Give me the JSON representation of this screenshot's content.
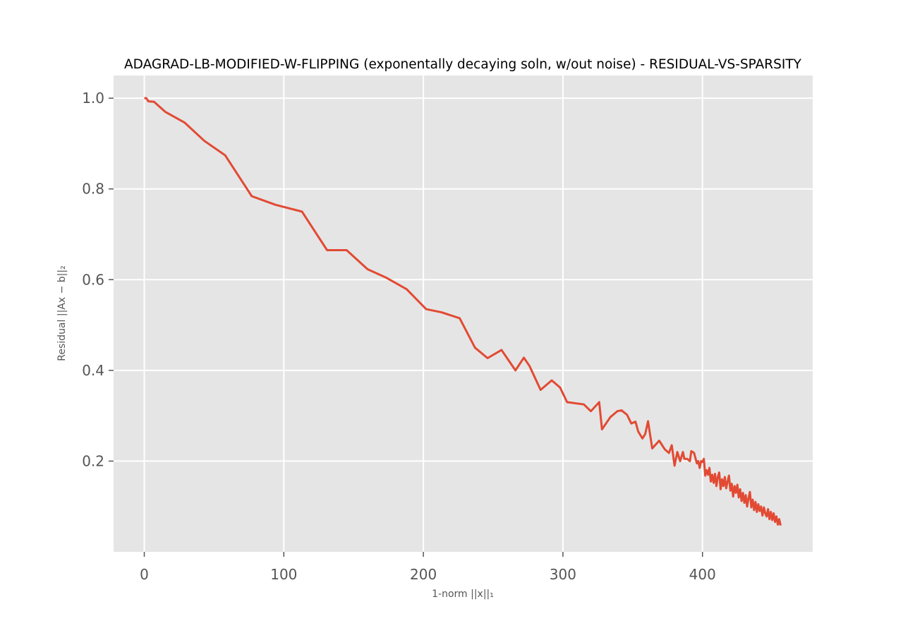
{
  "chart_data": {
    "type": "line",
    "title": "ADAGRAD-LB-MODIFIED-W-FLIPPING (exponentally decaying soln, w/out noise) - RESIDUAL-VS-SPARSITY",
    "xlabel": "1-norm ||x||₁",
    "ylabel": "Residual ||Ax − b||₂",
    "xlim": [
      -22,
      479
    ],
    "ylim": [
      0.0,
      1.05
    ],
    "xticks": [
      0,
      100,
      200,
      300,
      400
    ],
    "yticks": [
      0.2,
      0.4,
      0.6,
      0.8,
      1.0
    ],
    "xtick_labels": [
      "0",
      "100",
      "200",
      "300",
      "400"
    ],
    "ytick_labels": [
      "0.2",
      "0.4",
      "0.6",
      "0.8",
      "1.0"
    ],
    "grid": true,
    "style": "ggplot",
    "colors": {
      "background": "#e5e5e5",
      "grid": "#ffffff",
      "line": "#e24a33"
    },
    "series": [
      {
        "x": [
          0,
          1.5,
          3,
          7,
          15,
          29,
          43,
          58,
          77,
          94,
          113,
          131,
          145,
          160,
          173,
          188,
          202,
          213,
          226,
          237,
          246,
          256,
          266,
          272,
          276,
          284,
          292,
          298,
          303,
          315,
          320,
          326,
          328,
          334,
          339,
          342,
          346,
          349,
          352,
          354,
          357,
          359,
          361,
          364,
          369,
          373,
          376,
          378,
          380,
          382,
          384,
          386,
          387,
          389,
          391,
          392,
          394,
          396,
          397,
          398,
          399,
          400,
          401,
          402,
          403,
          404,
          405,
          406,
          407,
          408,
          409,
          410,
          411,
          412,
          413,
          414,
          415,
          416,
          417,
          418,
          419,
          420,
          421,
          422,
          423,
          424,
          425,
          426,
          427,
          428,
          429,
          430,
          431,
          432,
          433,
          434,
          435,
          436,
          437,
          438,
          439,
          440,
          441,
          442,
          443,
          444,
          445,
          446,
          447,
          448,
          449,
          450,
          451,
          452,
          453,
          454,
          455,
          456
        ],
        "y": [
          1.0,
          1.0,
          0.993,
          0.992,
          0.97,
          0.946,
          0.906,
          0.874,
          0.784,
          0.765,
          0.75,
          0.665,
          0.665,
          0.623,
          0.605,
          0.579,
          0.535,
          0.528,
          0.515,
          0.45,
          0.427,
          0.445,
          0.4,
          0.428,
          0.41,
          0.357,
          0.378,
          0.362,
          0.33,
          0.325,
          0.31,
          0.33,
          0.27,
          0.297,
          0.31,
          0.312,
          0.302,
          0.283,
          0.287,
          0.265,
          0.25,
          0.26,
          0.288,
          0.228,
          0.245,
          0.226,
          0.218,
          0.235,
          0.19,
          0.22,
          0.2,
          0.22,
          0.205,
          0.205,
          0.2,
          0.222,
          0.218,
          0.195,
          0.2,
          0.185,
          0.2,
          0.198,
          0.205,
          0.168,
          0.18,
          0.17,
          0.185,
          0.155,
          0.17,
          0.152,
          0.172,
          0.145,
          0.165,
          0.175,
          0.138,
          0.16,
          0.145,
          0.165,
          0.14,
          0.155,
          0.168,
          0.135,
          0.15,
          0.122,
          0.145,
          0.13,
          0.148,
          0.12,
          0.138,
          0.112,
          0.13,
          0.108,
          0.125,
          0.1,
          0.118,
          0.132,
          0.098,
          0.115,
          0.092,
          0.11,
          0.088,
          0.105,
          0.09,
          0.1,
          0.08,
          0.098,
          0.085,
          0.078,
          0.094,
          0.072,
          0.088,
          0.07,
          0.085,
          0.066,
          0.078,
          0.06,
          0.072,
          0.058
        ]
      }
    ]
  }
}
